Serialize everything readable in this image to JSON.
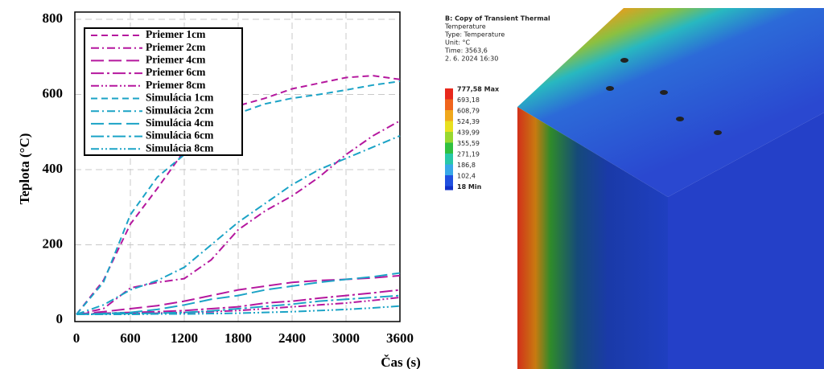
{
  "chart_data": {
    "type": "line",
    "xlabel": "Čas (s)",
    "ylabel": "Teplota (°C)",
    "x": [
      0,
      300,
      600,
      900,
      1200,
      1500,
      1800,
      2100,
      2400,
      2700,
      3000,
      3300,
      3600
    ],
    "xlim": [
      0,
      3600
    ],
    "xticks": [
      0,
      600,
      1200,
      1800,
      2400,
      3000,
      3600
    ],
    "ylim": [
      0,
      800
    ],
    "yticks": [
      0,
      200,
      400,
      600,
      800
    ],
    "grid": true,
    "legend": "upper left",
    "series": [
      {
        "name": "Priemer 1cm",
        "color": "#b5179e",
        "linestyle": "dashed",
        "values": [
          15,
          105,
          255,
          350,
          450,
          540,
          570,
          590,
          615,
          630,
          645,
          650,
          640
        ]
      },
      {
        "name": "Priemer 2cm",
        "color": "#b5179e",
        "linestyle": "dashdot",
        "values": [
          15,
          30,
          85,
          100,
          110,
          160,
          240,
          290,
          330,
          380,
          440,
          490,
          530
        ]
      },
      {
        "name": "Priemer 4cm",
        "color": "#b5179e",
        "linestyle": "longdash",
        "values": [
          15,
          22,
          30,
          38,
          50,
          65,
          80,
          90,
          100,
          105,
          108,
          112,
          118
        ]
      },
      {
        "name": "Priemer 6cm",
        "color": "#b5179e",
        "linestyle": "longdashdot",
        "values": [
          15,
          18,
          20,
          22,
          25,
          30,
          35,
          45,
          50,
          58,
          65,
          72,
          80
        ]
      },
      {
        "name": "Priemer 8cm",
        "color": "#b5179e",
        "linestyle": "dashdotdot",
        "values": [
          15,
          16,
          17,
          18,
          20,
          22,
          25,
          30,
          35,
          40,
          45,
          52,
          60
        ]
      },
      {
        "name": "Simulácia 1cm",
        "color": "#1ba3c6",
        "linestyle": "dashed",
        "values": [
          15,
          100,
          280,
          380,
          440,
          510,
          550,
          575,
          590,
          600,
          612,
          625,
          635
        ]
      },
      {
        "name": "Simulácia 2cm",
        "color": "#1ba3c6",
        "linestyle": "dashdot",
        "values": [
          15,
          40,
          80,
          105,
          140,
          200,
          260,
          310,
          360,
          400,
          430,
          460,
          490
        ]
      },
      {
        "name": "Simulácia 4cm",
        "color": "#1ba3c6",
        "linestyle": "longdash",
        "values": [
          15,
          17,
          20,
          28,
          40,
          55,
          65,
          80,
          90,
          100,
          108,
          115,
          125
        ]
      },
      {
        "name": "Simulácia 6cm",
        "color": "#1ba3c6",
        "linestyle": "longdashdot",
        "values": [
          15,
          16,
          17,
          18,
          20,
          24,
          30,
          36,
          42,
          50,
          55,
          60,
          65
        ]
      },
      {
        "name": "Simulácia 8cm",
        "color": "#1ba3c6",
        "linestyle": "dashdotdot",
        "values": [
          15,
          15,
          15,
          16,
          16,
          17,
          18,
          20,
          22,
          25,
          28,
          32,
          37
        ]
      }
    ]
  },
  "thermal": {
    "title": "B: Copy of Transient Thermal",
    "lines": [
      "Temperature",
      "Type: Temperature",
      "Unit: °C",
      "Time: 3563,6",
      "2. 6. 2024 16:30"
    ],
    "legend": [
      "777,58 Max",
      "693,18",
      "608,79",
      "524,39",
      "439,99",
      "355,59",
      "271,19",
      "186,8",
      "102,4",
      "18 Min"
    ]
  }
}
